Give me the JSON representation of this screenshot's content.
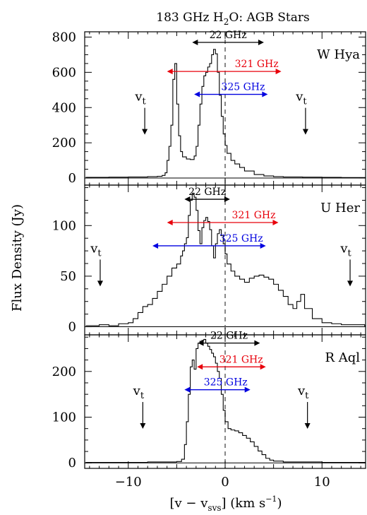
{
  "figure": {
    "title_main": "183 GHz H",
    "title_sub": "2",
    "title_rest": "O: AGB Stars",
    "ylabel": "Flux Density (Jy)",
    "xlabel_main": "[v − v",
    "xlabel_sub": "svs",
    "xlabel_mid": "] (km s",
    "xlabel_sup": "−1",
    "xlabel_end": ")"
  },
  "chart_data": [
    {
      "type": "line",
      "panel": "W Hya",
      "xlabel": "[v − v_svs] (km s^-1)",
      "ylabel": "Flux Density (Jy)",
      "xlim": [
        -14.5,
        14.5
      ],
      "ylim": [
        -40,
        830
      ],
      "yticks": [
        0,
        200,
        400,
        600,
        800
      ],
      "x_ticks": [
        -10,
        0,
        10
      ],
      "x": [
        -14.4,
        -12,
        -10,
        -8,
        -7,
        -6.5,
        -6.2,
        -6.0,
        -5.8,
        -5.6,
        -5.4,
        -5.2,
        -5.0,
        -4.8,
        -4.6,
        -4.4,
        -4.0,
        -3.6,
        -3.2,
        -3.0,
        -2.8,
        -2.6,
        -2.4,
        -2.2,
        -2.0,
        -1.8,
        -1.6,
        -1.4,
        -1.2,
        -1.0,
        -0.8,
        -0.6,
        -0.4,
        -0.2,
        0.0,
        0.2,
        0.6,
        1.0,
        1.5,
        2.0,
        3.0,
        4.0,
        5.0,
        6.0,
        8.0,
        10.0,
        12.0,
        14.4
      ],
      "y": [
        4,
        5,
        6,
        8,
        10,
        15,
        30,
        100,
        180,
        300,
        560,
        650,
        420,
        240,
        150,
        120,
        108,
        105,
        125,
        180,
        300,
        420,
        520,
        580,
        600,
        630,
        650,
        700,
        730,
        705,
        600,
        470,
        350,
        250,
        185,
        140,
        100,
        80,
        60,
        40,
        20,
        12,
        8,
        6,
        5,
        4,
        3,
        3
      ],
      "vt": [
        -8.3,
        8.3
      ],
      "vt_label": "v",
      "vt_sub": "t",
      "lines": [
        {
          "label": "22 GHz",
          "color": "#000000",
          "x": [
            -3.4,
            4.0
          ],
          "y": 770
        },
        {
          "label": "321 GHz",
          "color": "#e8000b",
          "x": [
            -6.0,
            5.8
          ],
          "y": 605
        },
        {
          "label": "325 GHz",
          "color": "#0000e0",
          "x": [
            -3.2,
            4.4
          ],
          "y": 475
        }
      ]
    },
    {
      "type": "line",
      "panel": "U Her",
      "ylim": [
        -8,
        140
      ],
      "yticks": [
        0,
        50,
        100
      ],
      "x_ticks": [
        -10,
        0,
        10
      ],
      "x": [
        -14.4,
        -13,
        -12,
        -11,
        -10,
        -9.5,
        -9.0,
        -8.5,
        -8.0,
        -7.5,
        -7.0,
        -6.5,
        -6.0,
        -5.5,
        -5.0,
        -4.6,
        -4.4,
        -4.2,
        -4.0,
        -3.8,
        -3.6,
        -3.4,
        -3.2,
        -3.0,
        -2.8,
        -2.6,
        -2.4,
        -2.2,
        -2.0,
        -1.8,
        -1.6,
        -1.4,
        -1.2,
        -1.0,
        -0.8,
        -0.6,
        -0.4,
        -0.2,
        0.0,
        0.2,
        0.6,
        1.0,
        1.5,
        2.0,
        2.5,
        3.0,
        3.5,
        4.0,
        4.5,
        5.0,
        5.5,
        6.0,
        6.5,
        7.0,
        7.4,
        7.8,
        8.2,
        9.0,
        10.0,
        11.0,
        12.0,
        13.0,
        14.4
      ],
      "y": [
        1,
        2,
        1,
        3,
        4,
        8,
        14,
        20,
        22,
        28,
        35,
        42,
        50,
        58,
        62,
        70,
        75,
        82,
        88,
        110,
        125,
        132,
        128,
        115,
        95,
        82,
        98,
        105,
        108,
        104,
        96,
        80,
        68,
        82,
        92,
        96,
        90,
        82,
        72,
        62,
        55,
        50,
        47,
        44,
        48,
        50,
        51,
        49,
        47,
        42,
        36,
        30,
        22,
        18,
        25,
        32,
        18,
        8,
        4,
        3,
        2,
        2,
        1
      ],
      "vt": [
        -12.9,
        12.9
      ],
      "vt_label": "v",
      "vt_sub": "t",
      "lines": [
        {
          "label": "22 GHz",
          "color": "#000000",
          "x": [
            -4.2,
            0.5
          ],
          "y": 126
        },
        {
          "label": "321 GHz",
          "color": "#e8000b",
          "x": [
            -6.0,
            5.5
          ],
          "y": 103
        },
        {
          "label": "325 GHz",
          "color": "#0000e0",
          "x": [
            -7.5,
            4.2
          ],
          "y": 80
        }
      ]
    },
    {
      "type": "line",
      "panel": "R Aql",
      "ylim": [
        -12,
        280
      ],
      "yticks": [
        0,
        100,
        200
      ],
      "x_ticks": [
        -10,
        0,
        10
      ],
      "x": [
        -14.4,
        -12,
        -10,
        -8,
        -6,
        -5,
        -4.5,
        -4.2,
        -4.0,
        -3.8,
        -3.6,
        -3.4,
        -3.2,
        -3.0,
        -2.8,
        -2.6,
        -2.4,
        -2.2,
        -2.0,
        -1.8,
        -1.6,
        -1.4,
        -1.2,
        -1.0,
        -0.8,
        -0.6,
        -0.4,
        -0.2,
        0.0,
        0.3,
        0.6,
        1.0,
        1.4,
        1.8,
        2.2,
        2.6,
        3.0,
        3.4,
        3.8,
        4.2,
        4.6,
        5.0,
        6.0,
        8.0,
        10.0,
        12.0,
        14.4
      ],
      "y": [
        1,
        1,
        1,
        2,
        2,
        3,
        8,
        40,
        90,
        150,
        210,
        225,
        205,
        250,
        262,
        266,
        268,
        270,
        262,
        255,
        248,
        240,
        232,
        218,
        200,
        185,
        150,
        115,
        90,
        75,
        72,
        70,
        66,
        60,
        54,
        46,
        36,
        26,
        18,
        10,
        6,
        4,
        2,
        2,
        1,
        1,
        1
      ],
      "vt": [
        -8.5,
        8.5
      ],
      "vt_label": "v",
      "vt_sub": "t",
      "lines": [
        {
          "label": "22 GHz",
          "color": "#000000",
          "x": [
            -2.8,
            3.6
          ],
          "y": 262
        },
        {
          "label": "321 GHz",
          "color": "#e8000b",
          "x": [
            -2.9,
            4.2
          ],
          "y": 210
        },
        {
          "label": "325 GHz",
          "color": "#0000e0",
          "x": [
            -4.2,
            2.6
          ],
          "y": 160
        }
      ]
    }
  ]
}
